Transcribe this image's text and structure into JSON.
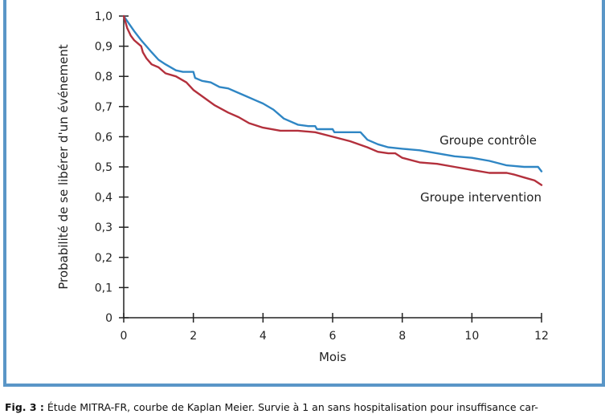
{
  "chart_data": {
    "type": "line",
    "title": "",
    "xlabel": "Mois",
    "ylabel": "Probabilité de se libérer d'un événement",
    "xlim": [
      0,
      12
    ],
    "ylim": [
      0,
      1.0
    ],
    "x_ticks": [
      0,
      2,
      4,
      6,
      8,
      10,
      12
    ],
    "x_tick_labels": [
      "0",
      "2",
      "4",
      "6",
      "8",
      "10",
      "12"
    ],
    "y_ticks": [
      0,
      0.1,
      0.2,
      0.3,
      0.4,
      0.5,
      0.6,
      0.7,
      0.8,
      0.9,
      1.0
    ],
    "y_tick_labels": [
      "0",
      "0,1",
      "0,2",
      "0,3",
      "0,4",
      "0,5",
      "0,6",
      "0,7",
      "0,8",
      "0,9",
      "1,0"
    ],
    "grid": false,
    "series": [
      {
        "name": "Groupe contrôle",
        "color": "#2f86c4",
        "x": [
          0,
          0.15,
          0.3,
          0.5,
          0.8,
          1.0,
          1.2,
          1.5,
          1.7,
          2.0,
          2.05,
          2.25,
          2.5,
          2.75,
          3.0,
          3.2,
          3.5,
          3.8,
          4.0,
          4.3,
          4.6,
          5.0,
          5.3,
          5.5,
          5.55,
          6.0,
          6.05,
          6.8,
          7.0,
          7.3,
          7.6,
          8.0,
          8.5,
          9.0,
          9.5,
          10.0,
          10.5,
          11.0,
          11.5,
          11.9,
          12.0
        ],
        "y": [
          1.0,
          0.975,
          0.95,
          0.92,
          0.88,
          0.855,
          0.84,
          0.82,
          0.815,
          0.815,
          0.795,
          0.785,
          0.78,
          0.765,
          0.76,
          0.75,
          0.735,
          0.72,
          0.71,
          0.69,
          0.66,
          0.64,
          0.635,
          0.635,
          0.625,
          0.625,
          0.615,
          0.615,
          0.59,
          0.575,
          0.565,
          0.56,
          0.555,
          0.545,
          0.535,
          0.53,
          0.52,
          0.505,
          0.5,
          0.5,
          0.485
        ]
      },
      {
        "name": "Groupe intervention",
        "color": "#b3303c",
        "x": [
          0,
          0.1,
          0.2,
          0.3,
          0.4,
          0.5,
          0.55,
          0.65,
          0.8,
          1.0,
          1.2,
          1.5,
          1.8,
          2.0,
          2.3,
          2.6,
          3.0,
          3.3,
          3.6,
          4.0,
          4.5,
          5.0,
          5.5,
          6.0,
          6.5,
          7.0,
          7.3,
          7.6,
          7.8,
          8.0,
          8.5,
          9.0,
          9.5,
          10.0,
          10.5,
          10.8,
          11.0,
          11.2,
          11.5,
          11.8,
          12.0
        ],
        "y": [
          1.0,
          0.96,
          0.935,
          0.92,
          0.91,
          0.9,
          0.88,
          0.86,
          0.84,
          0.83,
          0.81,
          0.8,
          0.78,
          0.755,
          0.73,
          0.705,
          0.68,
          0.665,
          0.645,
          0.63,
          0.62,
          0.62,
          0.615,
          0.6,
          0.585,
          0.565,
          0.55,
          0.545,
          0.545,
          0.53,
          0.515,
          0.51,
          0.5,
          0.49,
          0.48,
          0.48,
          0.48,
          0.475,
          0.465,
          0.455,
          0.44
        ]
      }
    ]
  },
  "caption": {
    "label": "Fig. 3 :",
    "text": " Étude MITRA-FR, courbe de Kaplan Meier. Survie à 1 an sans hospitalisation pour insuffisance car-"
  }
}
